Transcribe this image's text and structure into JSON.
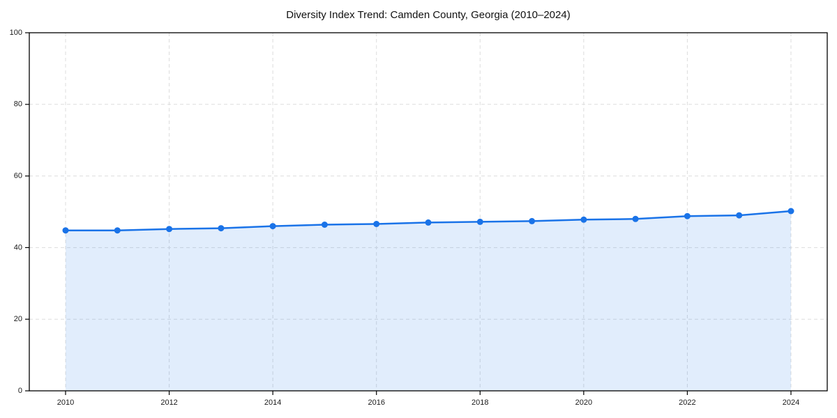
{
  "chart_data": {
    "type": "area",
    "title": "Diversity Index Trend: Camden County, Georgia (2010–2024)",
    "x": [
      2010,
      2011,
      2012,
      2013,
      2014,
      2015,
      2016,
      2017,
      2018,
      2019,
      2020,
      2021,
      2022,
      2023,
      2024
    ],
    "values": [
      44.8,
      44.8,
      45.2,
      45.4,
      46.0,
      46.4,
      46.6,
      47.0,
      47.2,
      47.4,
      47.8,
      48.0,
      48.8,
      49.0,
      50.2
    ],
    "xlabel": "",
    "ylabel": "",
    "xlim": [
      2009.3,
      2024.7
    ],
    "ylim": [
      0,
      100
    ],
    "xticks": [
      2010,
      2012,
      2014,
      2016,
      2018,
      2020,
      2022,
      2024
    ],
    "xtick_labels": [
      "2010",
      "2012",
      "2014",
      "2016",
      "2018",
      "2020",
      "2022",
      "2024"
    ],
    "yticks": [
      0,
      20,
      40,
      60,
      80,
      100
    ],
    "ytick_labels": [
      "0",
      "20",
      "40",
      "60",
      "80",
      "100"
    ],
    "grid": true,
    "grid_style": "dashed",
    "legend": false,
    "colors": {
      "line": "#1a73e8",
      "marker": "#1a73e8",
      "area_fill": "rgba(26,115,232,0.13)",
      "grid": "#dddddd",
      "axis": "#000000",
      "text": "#1a1a1a",
      "background": "#ffffff"
    }
  }
}
